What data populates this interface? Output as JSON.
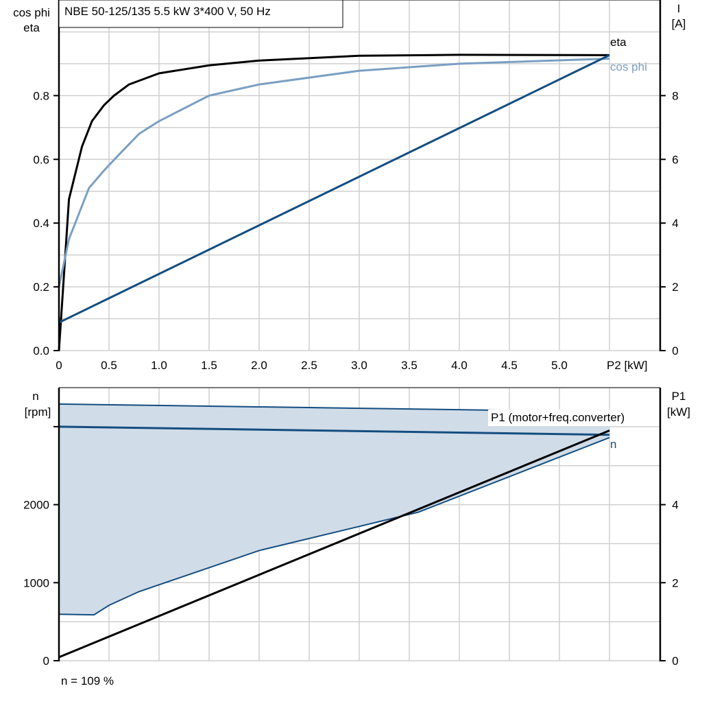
{
  "chart_data": [
    {
      "type": "line",
      "title": "NBE 50-125/135   5.5 kW   3*400 V, 50 Hz",
      "xlabel": "P2 [kW]",
      "ylabel_left": [
        "cos phi",
        "eta"
      ],
      "ylabel_right": [
        "I",
        "[A]"
      ],
      "xlim": [
        0,
        5.5
      ],
      "ylim_left": [
        0,
        1.1
      ],
      "ylim_right": [
        0,
        11
      ],
      "grid": true,
      "x_ticks": [
        "0",
        "0.5",
        "1.0",
        "1.5",
        "2.0",
        "2.5",
        "3.0",
        "3.5",
        "4.0",
        "4.5",
        "5.0"
      ],
      "y_left_ticks": [
        "0.0",
        "0.2",
        "0.4",
        "0.6",
        "0.8"
      ],
      "y_right_ticks": [
        "0",
        "2",
        "4",
        "6",
        "8"
      ],
      "series": [
        {
          "name": "eta",
          "axis": "left",
          "color": "#000000",
          "x": [
            0,
            0.1,
            0.23,
            0.33,
            0.45,
            0.55,
            0.7,
            1.0,
            1.5,
            2.0,
            3.0,
            4.0,
            5.5
          ],
          "y": [
            0,
            0.475,
            0.64,
            0.72,
            0.77,
            0.8,
            0.835,
            0.87,
            0.895,
            0.91,
            0.925,
            0.928,
            0.927
          ]
        },
        {
          "name": "cos phi",
          "axis": "left",
          "color": "#7a9fc2",
          "x": [
            0,
            0.1,
            0.2,
            0.3,
            0.45,
            0.6,
            0.8,
            1.0,
            1.5,
            2.0,
            3.0,
            4.0,
            5.5
          ],
          "y": [
            0.2,
            0.35,
            0.43,
            0.51,
            0.565,
            0.615,
            0.68,
            0.72,
            0.8,
            0.835,
            0.878,
            0.9,
            0.916
          ]
        },
        {
          "axis": "right",
          "color": "#134d80",
          "x": [
            0,
            5.5
          ],
          "y": [
            0.88,
            9.27
          ]
        }
      ]
    },
    {
      "type": "line",
      "ylabel_left": [
        "n",
        "[rpm]"
      ],
      "ylabel_right": [
        "P1",
        "[kW]"
      ],
      "xlim": [
        0,
        5.5
      ],
      "ylim_left": [
        0,
        3500
      ],
      "ylim_right": [
        0,
        7
      ],
      "grid": true,
      "y_left_ticks": [
        "0",
        "1000",
        "2000"
      ],
      "y_right_ticks": [
        "0",
        "2",
        "4"
      ],
      "footnote": "n = 109 %",
      "band": {
        "color": "#d0dce8",
        "edge": "#134d80",
        "upper": {
          "x": [
            0,
            5.5
          ],
          "y": [
            3290,
            3190
          ]
        },
        "lower": {
          "x": [
            0,
            0.35,
            0.5,
            0.8,
            2.0,
            3.59,
            5.5
          ],
          "y": [
            596,
            588,
            710,
            886,
            1412,
            1904,
            2860
          ]
        }
      },
      "series": [
        {
          "name": "n",
          "axis": "left",
          "color": "#134d80",
          "x": [
            0,
            5.5
          ],
          "y": [
            3000,
            2895
          ]
        },
        {
          "name": "P1 (motor+freq.converter)",
          "axis": "right",
          "color": "#000000",
          "x": [
            0,
            5.5
          ],
          "y": [
            0.09,
            5.9
          ]
        }
      ]
    }
  ]
}
